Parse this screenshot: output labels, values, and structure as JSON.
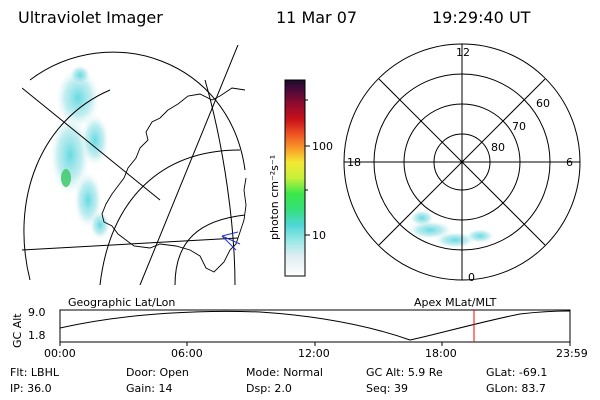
{
  "header": {
    "instrument": "Ultraviolet Imager",
    "date": "11 Mar 07",
    "time": "19:29:40 UT"
  },
  "colorbar": {
    "label": "photon cm⁻²s⁻¹",
    "ticks": [
      "100",
      "10"
    ]
  },
  "polar_plot": {
    "lat_labels": [
      "60",
      "70",
      "80"
    ],
    "mlt_labels": [
      "12",
      "18",
      "6",
      "0"
    ]
  },
  "timeline": {
    "y_axis_title": "GC Alt",
    "y_ticks": [
      "9.0",
      "1.8"
    ],
    "left_caption": "Geographic Lat/Lon",
    "right_caption": "Apex MLat/MLT",
    "x_ticks": [
      "00:00",
      "06:00",
      "12:00",
      "18:00",
      "23:59"
    ],
    "marker_color": "#ff0000"
  },
  "status": {
    "row1": [
      {
        "label": "Flt:",
        "value": "LBHL"
      },
      {
        "label": "Door:",
        "value": "Open"
      },
      {
        "label": "Mode:",
        "value": "Normal"
      },
      {
        "label": "GC Alt:",
        "value": "5.9 Re"
      },
      {
        "label": "GLat:",
        "value": "-69.1"
      }
    ],
    "row2": [
      {
        "label": "IP:",
        "value": "36.0"
      },
      {
        "label": "Gain:",
        "value": "14"
      },
      {
        "label": "Dsp:",
        "value": "2.0"
      },
      {
        "label": "Seq:",
        "value": "39"
      },
      {
        "label": "GLon:",
        "value": "83.7"
      }
    ]
  }
}
